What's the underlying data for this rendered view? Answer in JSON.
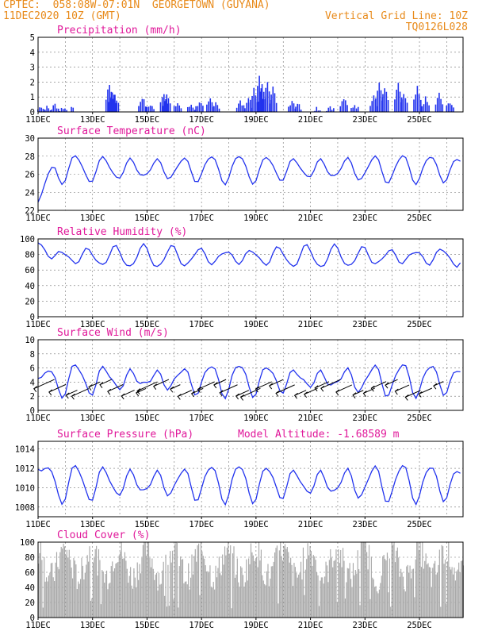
{
  "header": {
    "line1_left": "CPTEC:  058:08W-07:01N  GEORGETOWN (GUYANA)",
    "line2_left": "11DEC2020 10Z (GMT)",
    "line2_right": "Vertical Grid Line: 10Z",
    "line3_right": "TQ0126L028"
  },
  "x_tick_labels": [
    "11DEC",
    "13DEC",
    "15DEC",
    "17DEC",
    "19DEC",
    "21DEC",
    "23DEC",
    "25DEC"
  ],
  "colors": {
    "header": "#e88a1a",
    "title": "#e0189a",
    "series": "#2233ee",
    "cloud": "#a8a8a8",
    "wind_arrow": "#000000"
  },
  "chart_data": [
    {
      "id": "precip",
      "type": "bar",
      "title": "Precipitation (mm/h)",
      "ylim": [
        0,
        5
      ],
      "yticks": [
        0,
        1,
        2,
        3,
        4,
        5
      ],
      "x_range_days": [
        0,
        15.6
      ],
      "events": [
        {
          "x": 0.1,
          "v": 0.4
        },
        {
          "x": 0.3,
          "v": 0.3
        },
        {
          "x": 0.6,
          "v": 0.5
        },
        {
          "x": 0.9,
          "v": 0.3
        },
        {
          "x": 1.2,
          "v": 0.2
        },
        {
          "x": 2.6,
          "v": 1.9
        },
        {
          "x": 2.7,
          "v": 1.4
        },
        {
          "x": 2.8,
          "v": 1.2
        },
        {
          "x": 3.8,
          "v": 1.0
        },
        {
          "x": 4.1,
          "v": 0.5
        },
        {
          "x": 4.6,
          "v": 1.3
        },
        {
          "x": 4.7,
          "v": 1.2
        },
        {
          "x": 5.1,
          "v": 0.6
        },
        {
          "x": 5.6,
          "v": 0.5
        },
        {
          "x": 5.9,
          "v": 0.7
        },
        {
          "x": 6.3,
          "v": 0.8
        },
        {
          "x": 6.5,
          "v": 0.7
        },
        {
          "x": 7.4,
          "v": 0.7
        },
        {
          "x": 7.7,
          "v": 0.9
        },
        {
          "x": 7.9,
          "v": 1.5
        },
        {
          "x": 8.1,
          "v": 2.3
        },
        {
          "x": 8.2,
          "v": 1.8
        },
        {
          "x": 8.4,
          "v": 2.1
        },
        {
          "x": 8.6,
          "v": 1.6
        },
        {
          "x": 9.3,
          "v": 0.8
        },
        {
          "x": 9.5,
          "v": 0.6
        },
        {
          "x": 10.2,
          "v": 0.3
        },
        {
          "x": 10.7,
          "v": 0.4
        },
        {
          "x": 11.2,
          "v": 0.9
        },
        {
          "x": 11.6,
          "v": 0.5
        },
        {
          "x": 12.3,
          "v": 1.2
        },
        {
          "x": 12.5,
          "v": 2.0
        },
        {
          "x": 12.7,
          "v": 1.7
        },
        {
          "x": 13.2,
          "v": 1.9
        },
        {
          "x": 13.4,
          "v": 1.2
        },
        {
          "x": 13.9,
          "v": 1.6
        },
        {
          "x": 14.2,
          "v": 0.9
        },
        {
          "x": 14.7,
          "v": 1.2
        },
        {
          "x": 15.1,
          "v": 0.7
        }
      ]
    },
    {
      "id": "temp",
      "type": "line",
      "title": "Surface Temperature (nC)",
      "ylim": [
        22,
        30
      ],
      "yticks": [
        22,
        24,
        26,
        28,
        30
      ],
      "base": 26.6,
      "amp": 1.25,
      "noise": 0.55,
      "start_value": 22.9
    },
    {
      "id": "rh",
      "type": "line",
      "title": "Relative Humidity (%)",
      "ylim": [
        0,
        100
      ],
      "yticks": [
        0,
        20,
        40,
        60,
        80,
        100
      ],
      "base": 77,
      "amp": -11,
      "noise": 6,
      "start_value": 95
    },
    {
      "id": "wind",
      "type": "line",
      "title": "Surface Wind (m/s)",
      "ylim": [
        0,
        10
      ],
      "yticks": [
        0,
        2,
        4,
        6,
        8,
        10
      ],
      "base": 4.4,
      "amp": 1.6,
      "noise": 1.2,
      "start_value": 4.5,
      "arrow_u": -1,
      "arrow_v": -0.45
    },
    {
      "id": "pres",
      "type": "line",
      "title": "Surface Pressure (hPa)",
      "subtitle": "Model Altitude: -1.68589 m",
      "ylim": [
        1007,
        1014.8
      ],
      "yticks": [
        1008,
        1010,
        1012,
        1014
      ],
      "base": 1010.5,
      "amp": 1.5,
      "noise": 0.8,
      "start_value": 1011.9
    },
    {
      "id": "cloud",
      "type": "area",
      "title": "Cloud Cover (%)",
      "ylim": [
        0,
        100
      ],
      "yticks": [
        0,
        20,
        40,
        60,
        80,
        100
      ],
      "base": 72,
      "amp": 18,
      "noise": 20
    }
  ]
}
